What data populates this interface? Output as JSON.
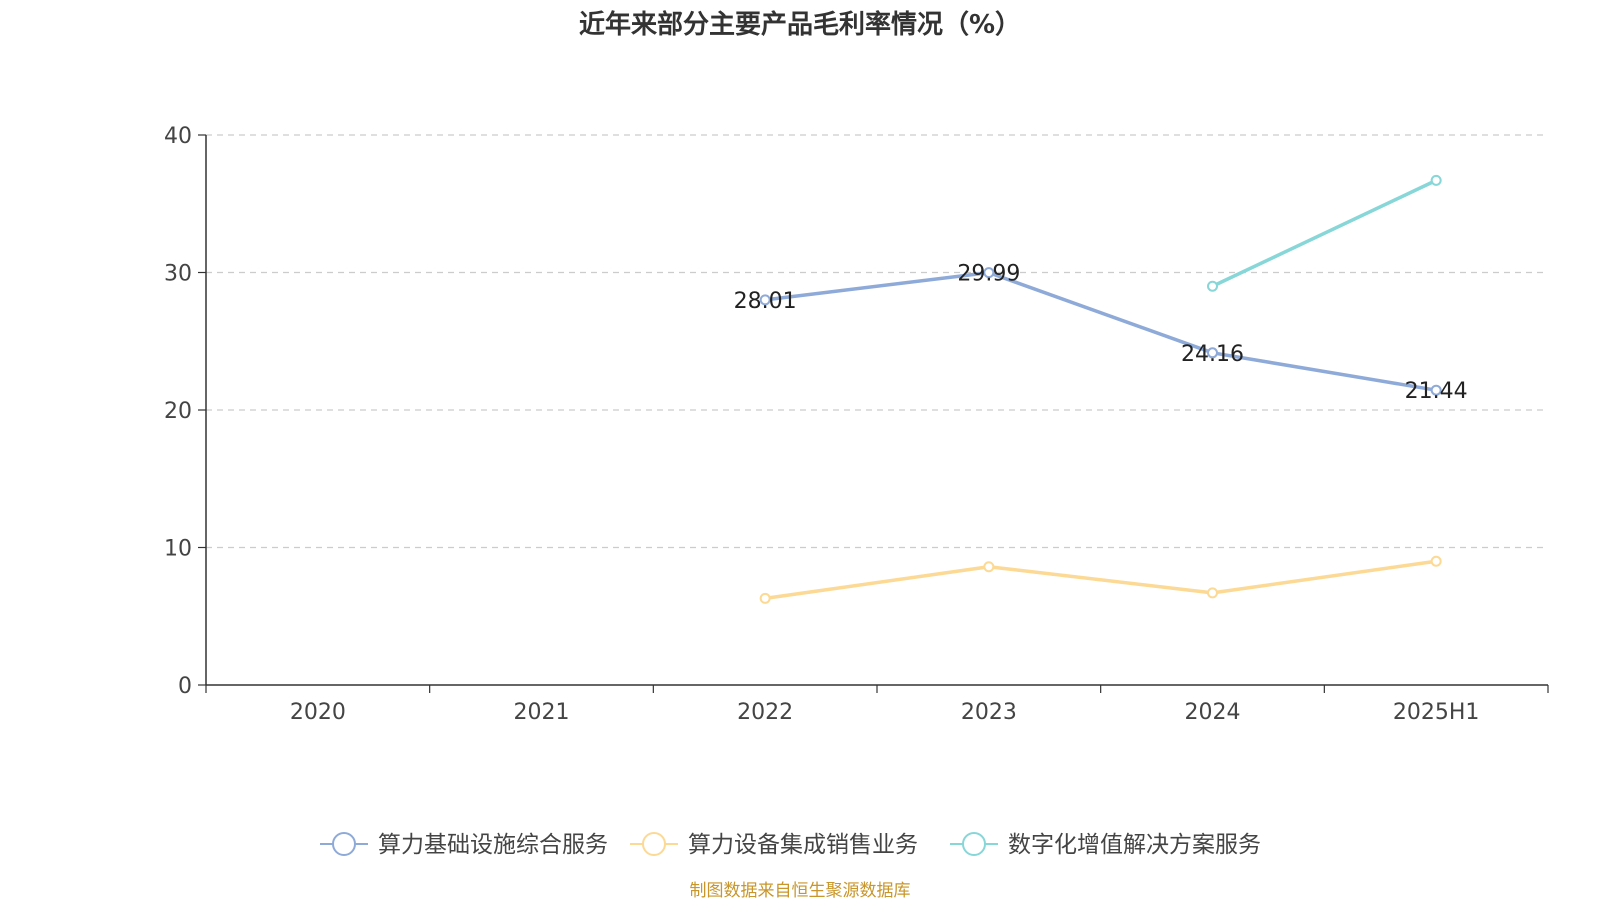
{
  "title": "近年来部分主要产品毛利率情况（%）",
  "source": "制图数据来自恒生聚源数据库",
  "colors": {
    "source_text": "#c8962a",
    "axis": "#333333",
    "grid": "#cccccc",
    "tick_label": "#444444",
    "data_label": "#222222"
  },
  "chart_data": {
    "type": "line",
    "title": "近年来部分主要产品毛利率情况（%）",
    "categories": [
      "2020",
      "2021",
      "2022",
      "2023",
      "2024",
      "2025H1"
    ],
    "ylim": [
      0,
      40
    ],
    "yticks": [
      0,
      10,
      20,
      30,
      40
    ],
    "grid": "horizontal-dashed",
    "legend_position": "bottom",
    "series": [
      {
        "name": "算力基础设施综合服务",
        "color": "#8eaad8",
        "values": [
          null,
          null,
          28.01,
          29.99,
          24.16,
          21.44
        ],
        "labels": [
          null,
          null,
          "28.01",
          "29.99",
          "24.16",
          "21.44"
        ]
      },
      {
        "name": "算力设备集成销售业务",
        "color": "#fcd994",
        "values": [
          null,
          null,
          6.3,
          8.6,
          6.7,
          9.0
        ],
        "labels": [
          null,
          null,
          null,
          null,
          null,
          null
        ]
      },
      {
        "name": "数字化增值解决方案服务",
        "color": "#87d6d8",
        "values": [
          null,
          null,
          null,
          null,
          29.0,
          36.7
        ],
        "labels": [
          null,
          null,
          null,
          null,
          null,
          null
        ]
      }
    ]
  }
}
